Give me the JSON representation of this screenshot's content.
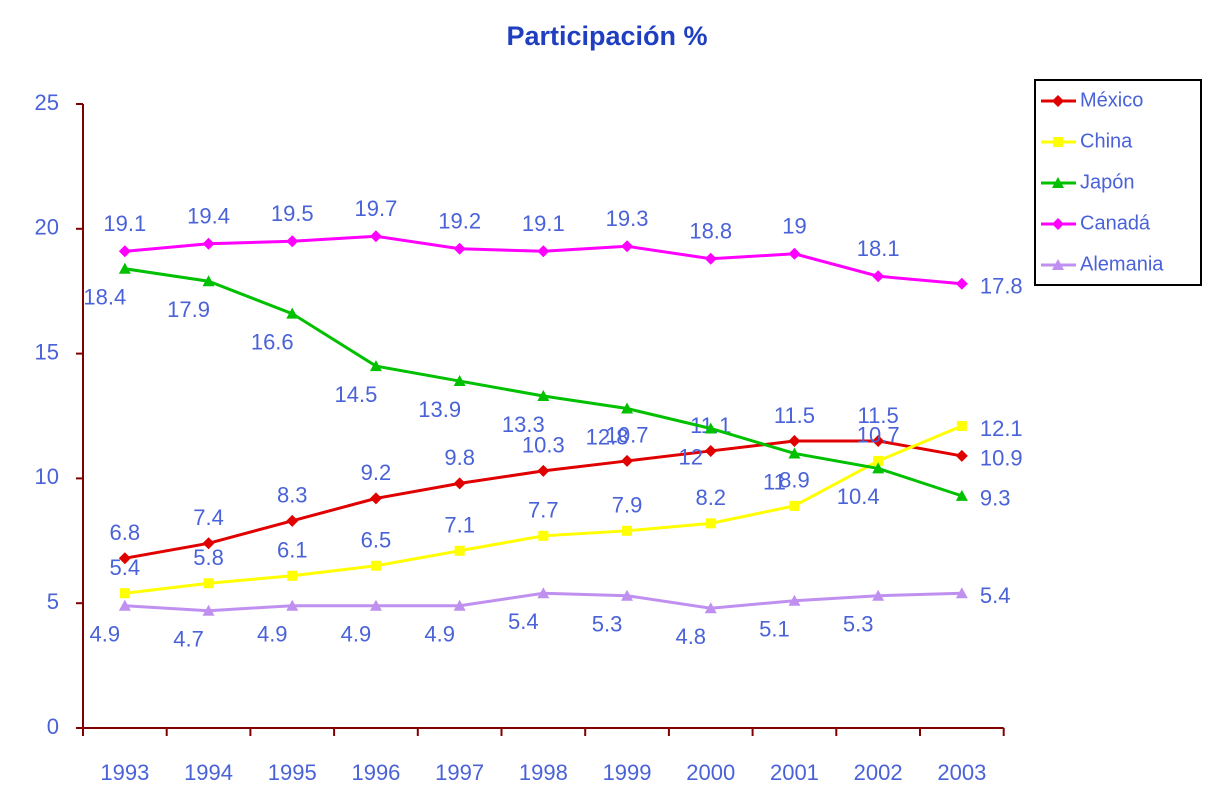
{
  "chart_data": {
    "type": "line",
    "title": "Participación %",
    "categories": [
      "1993",
      "1994",
      "1995",
      "1996",
      "1997",
      "1998",
      "1999",
      "2000",
      "2001",
      "2002",
      "2003"
    ],
    "series": [
      {
        "name": "México",
        "color": "#e00000",
        "marker": "diamond",
        "values": [
          6.8,
          7.4,
          8.3,
          9.2,
          9.8,
          10.3,
          10.7,
          11.1,
          11.5,
          11.5,
          10.9
        ]
      },
      {
        "name": "China",
        "color": "#ffff00",
        "marker": "square",
        "values": [
          5.4,
          5.8,
          6.1,
          6.5,
          7.1,
          7.7,
          7.9,
          8.2,
          8.9,
          10.7,
          12.1
        ]
      },
      {
        "name": "Japón",
        "color": "#00c000",
        "marker": "triangle",
        "values": [
          18.4,
          17.9,
          16.6,
          14.5,
          13.9,
          13.3,
          12.8,
          12,
          11,
          10.4,
          9.3
        ]
      },
      {
        "name": "Canadá",
        "color": "#ff00ff",
        "marker": "diamond",
        "values": [
          19.1,
          19.4,
          19.5,
          19.7,
          19.2,
          19.1,
          19.3,
          18.8,
          19,
          18.1,
          17.8
        ]
      },
      {
        "name": "Alemania",
        "color": "#c090f0",
        "marker": "triangle",
        "values": [
          4.9,
          4.7,
          4.9,
          4.9,
          4.9,
          5.4,
          5.3,
          4.8,
          5.1,
          5.3,
          5.4
        ]
      }
    ],
    "ylim": [
      0,
      25
    ],
    "yticks": [
      0,
      5,
      10,
      15,
      20,
      25
    ],
    "legend": "right"
  }
}
